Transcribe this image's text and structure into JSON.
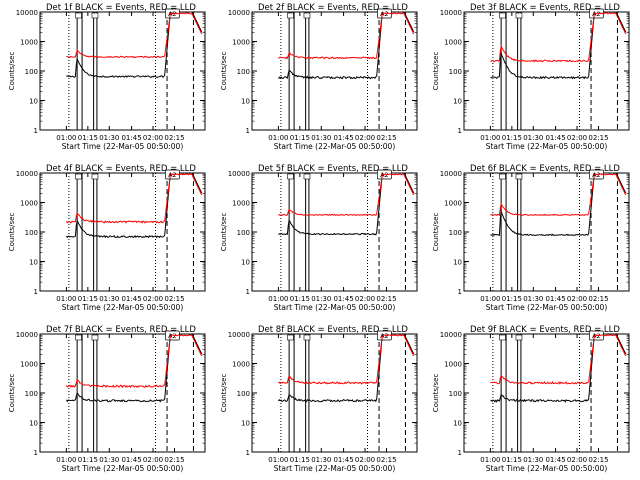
{
  "chart_data": [
    {
      "type": "line",
      "title": "Det 1f BLACK = Events, RED = LLD",
      "xlabel": "Start Time (22-Mar-05 00:50:00)",
      "ylabel": "Counts/sec",
      "y_scale": "log",
      "ylim": [
        1,
        10000
      ],
      "x_ticks": [
        "01:00",
        "01:15",
        "01:30",
        "01:45",
        "02:00",
        "02:15"
      ],
      "y_ticks": [
        "1",
        "10",
        "100",
        "1000",
        "10000"
      ],
      "flag_label": "A2",
      "series": [
        {
          "name": "Events",
          "color": "#000000",
          "base": 65,
          "peak": 260,
          "noise": 0.06
        },
        {
          "name": "LLD",
          "color": "#ff0000",
          "base": 300,
          "peak": 500,
          "noise": 0.05
        }
      ]
    },
    {
      "type": "line",
      "title": "Det 2f BLACK = Events, RED = LLD",
      "xlabel": "Start Time (22-Mar-05 00:50:00)",
      "ylabel": "Counts/sec",
      "y_scale": "log",
      "ylim": [
        1,
        10000
      ],
      "x_ticks": [
        "01:00",
        "01:15",
        "01:30",
        "01:45",
        "02:00",
        "02:15"
      ],
      "y_ticks": [
        "1",
        "10",
        "100",
        "1000",
        "10000"
      ],
      "flag_label": "A2",
      "series": [
        {
          "name": "Events",
          "color": "#000000",
          "base": 60,
          "peak": 110,
          "noise": 0.08
        },
        {
          "name": "LLD",
          "color": "#ff0000",
          "base": 280,
          "peak": 420,
          "noise": 0.06
        }
      ]
    },
    {
      "type": "line",
      "title": "Det 3f BLACK = Events, RED = LLD",
      "xlabel": "Start Time (22-Mar-05 00:50:00)",
      "ylabel": "Counts/sec",
      "y_scale": "log",
      "ylim": [
        1,
        10000
      ],
      "x_ticks": [
        "01:00",
        "01:15",
        "01:30",
        "01:45",
        "02:00",
        "02:15"
      ],
      "y_ticks": [
        "1",
        "10",
        "100",
        "1000",
        "10000"
      ],
      "flag_label": "A2",
      "series": [
        {
          "name": "Events",
          "color": "#000000",
          "base": 60,
          "peak": 400,
          "noise": 0.07
        },
        {
          "name": "LLD",
          "color": "#ff0000",
          "base": 220,
          "peak": 700,
          "noise": 0.07
        }
      ]
    },
    {
      "type": "line",
      "title": "Det 4f BLACK = Events, RED = LLD",
      "xlabel": "Start Time (22-Mar-05 00:50:00)",
      "ylabel": "Counts/sec",
      "y_scale": "log",
      "ylim": [
        1,
        10000
      ],
      "x_ticks": [
        "01:00",
        "01:15",
        "01:30",
        "01:45",
        "02:00",
        "02:15"
      ],
      "y_ticks": [
        "1",
        "10",
        "100",
        "1000",
        "10000"
      ],
      "flag_label": "A2",
      "series": [
        {
          "name": "Events",
          "color": "#000000",
          "base": 70,
          "peak": 250,
          "noise": 0.07
        },
        {
          "name": "LLD",
          "color": "#ff0000",
          "base": 220,
          "peak": 450,
          "noise": 0.07
        }
      ]
    },
    {
      "type": "line",
      "title": "Det 5f BLACK = Events, RED = LLD",
      "xlabel": "Start Time (22-Mar-05 00:50:00)",
      "ylabel": "Counts/sec",
      "y_scale": "log",
      "ylim": [
        1,
        10000
      ],
      "x_ticks": [
        "01:00",
        "01:15",
        "01:30",
        "01:45",
        "02:00",
        "02:15"
      ],
      "y_ticks": [
        "1",
        "10",
        "100",
        "1000",
        "10000"
      ],
      "flag_label": "A2",
      "series": [
        {
          "name": "Events",
          "color": "#000000",
          "base": 85,
          "peak": 250,
          "noise": 0.05
        },
        {
          "name": "LLD",
          "color": "#ff0000",
          "base": 380,
          "peak": 600,
          "noise": 0.04
        }
      ]
    },
    {
      "type": "line",
      "title": "Det 6f BLACK = Events, RED = LLD",
      "xlabel": "Start Time (22-Mar-05 00:50:00)",
      "ylabel": "Counts/sec",
      "y_scale": "log",
      "ylim": [
        1,
        10000
      ],
      "x_ticks": [
        "01:00",
        "01:15",
        "01:30",
        "01:45",
        "02:00",
        "02:15"
      ],
      "y_ticks": [
        "1",
        "10",
        "100",
        "1000",
        "10000"
      ],
      "flag_label": "A2",
      "series": [
        {
          "name": "Events",
          "color": "#000000",
          "base": 80,
          "peak": 500,
          "noise": 0.05
        },
        {
          "name": "LLD",
          "color": "#ff0000",
          "base": 380,
          "peak": 900,
          "noise": 0.04
        }
      ]
    },
    {
      "type": "line",
      "title": "Det 7f BLACK = Events, RED = LLD",
      "xlabel": "Start Time (22-Mar-05 00:50:00)",
      "ylabel": "Counts/sec",
      "y_scale": "log",
      "ylim": [
        1,
        10000
      ],
      "x_ticks": [
        "01:00",
        "01:15",
        "01:30",
        "01:45",
        "02:00",
        "02:15"
      ],
      "y_ticks": [
        "1",
        "10",
        "100",
        "1000",
        "10000"
      ],
      "flag_label": "A2",
      "series": [
        {
          "name": "Events",
          "color": "#000000",
          "base": 55,
          "peak": 100,
          "noise": 0.08
        },
        {
          "name": "LLD",
          "color": "#ff0000",
          "base": 170,
          "peak": 280,
          "noise": 0.08
        }
      ]
    },
    {
      "type": "line",
      "title": "Det 8f BLACK = Events, RED = LLD",
      "xlabel": "Start Time (22-Mar-05 00:50:00)",
      "ylabel": "Counts/sec",
      "y_scale": "log",
      "ylim": [
        1,
        10000
      ],
      "x_ticks": [
        "01:00",
        "01:15",
        "01:30",
        "01:45",
        "02:00",
        "02:15"
      ],
      "y_ticks": [
        "1",
        "10",
        "100",
        "1000",
        "10000"
      ],
      "flag_label": "A2",
      "series": [
        {
          "name": "Events",
          "color": "#000000",
          "base": 55,
          "peak": 90,
          "noise": 0.08
        },
        {
          "name": "LLD",
          "color": "#ff0000",
          "base": 220,
          "peak": 380,
          "noise": 0.07
        }
      ]
    },
    {
      "type": "line",
      "title": "Det 9f BLACK = Events, RED = LLD",
      "xlabel": "Start Time (22-Mar-05 00:50:00)",
      "ylabel": "Counts/sec",
      "y_scale": "log",
      "ylim": [
        1,
        10000
      ],
      "x_ticks": [
        "01:00",
        "01:15",
        "01:30",
        "01:45",
        "02:00",
        "02:15"
      ],
      "y_ticks": [
        "1",
        "10",
        "100",
        "1000",
        "10000"
      ],
      "flag_label": "A2",
      "series": [
        {
          "name": "Events",
          "color": "#000000",
          "base": 55,
          "peak": 90,
          "noise": 0.08
        },
        {
          "name": "LLD",
          "color": "#ff0000",
          "base": 220,
          "peak": 400,
          "noise": 0.07
        }
      ]
    }
  ]
}
